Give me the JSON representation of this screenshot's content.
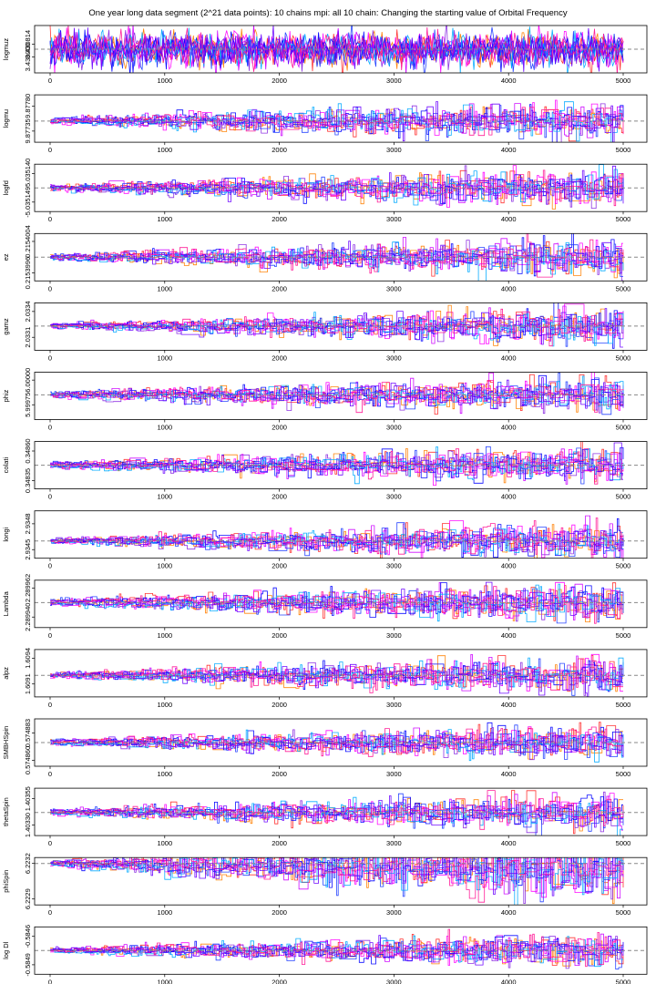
{
  "chart_data": {
    "type": "line",
    "title": "One year long data segment (2^21 data points): 10 chains mpi: all 10 chain: Changing the starting value of Orbital Frequency",
    "x_range": [
      0,
      5000
    ],
    "x_ticks": [
      0,
      1000,
      2000,
      3000,
      4000,
      5000
    ],
    "n_chains": 10,
    "chain_colors": [
      "#ff2a2a",
      "#ff7f00",
      "#ff00ff",
      "#cc00ff",
      "#8a2be2",
      "#0000ff",
      "#1e3cff",
      "#00aaff",
      "#ff1493",
      "#6a00ff"
    ],
    "reference_line_color": "#888888",
    "panels": [
      {
        "ylabel": "logmuz",
        "yticks": [
          "3.430814",
          "3.430000"
        ],
        "ylim": [
          3.429,
          3.432
        ],
        "ref": 3.4305,
        "start": 3.4305,
        "spread0": 0.0009,
        "spread1": 0.0009,
        "noise": 0.5,
        "amp": 0.0
      },
      {
        "ylabel": "logmu",
        "yticks": [
          "9.87780",
          "9.87735"
        ],
        "ylim": [
          9.87715,
          9.878
        ],
        "ref": 9.87753,
        "start": 9.87753,
        "spread0": 3e-05,
        "spread1": 0.00028,
        "noise": 0.35,
        "amp": 4e-05
      },
      {
        "ylabel": "logfd",
        "yticks": [
          "-5.035140",
          "-5.035149"
        ],
        "ylim": [
          -5.035152,
          -5.035137
        ],
        "ref": -5.0351445,
        "start": -5.0351445,
        "spread0": 5e-07,
        "spread1": 5e-06,
        "noise": 0.35,
        "amp": 5e-07
      },
      {
        "ylabel": "ez",
        "yticks": [
          "0.2154004",
          "0.2153996"
        ],
        "ylim": [
          0.2153994,
          0.2154006
        ],
        "ref": 0.2154,
        "start": 0.2154,
        "spread0": 3e-08,
        "spread1": 4e-07,
        "noise": 0.35,
        "amp": 5e-08
      },
      {
        "ylabel": "gamz",
        "yticks": [
          "2.0334",
          "2.0331"
        ],
        "ylim": [
          2.03295,
          2.0335
        ],
        "ref": 2.03323,
        "start": 2.03323,
        "spread0": 1e-05,
        "spread1": 0.00018,
        "noise": 0.35,
        "amp": 2e-05
      },
      {
        "ylabel": "phiz",
        "yticks": [
          "6.00000",
          "5.99975"
        ],
        "ylim": [
          5.9996,
          6.00008
        ],
        "ref": 5.99985,
        "start": 5.99985,
        "spread0": 2e-05,
        "spread1": 0.00015,
        "noise": 0.35,
        "amp": 2e-05
      },
      {
        "ylabel": "colati",
        "yticks": [
          "0.34860",
          "0.34835"
        ],
        "ylim": [
          0.34828,
          0.34868
        ],
        "ref": 0.34848,
        "start": 0.34848,
        "spread0": 1e-05,
        "spread1": 0.00013,
        "noise": 0.35,
        "amp": 2e-05
      },
      {
        "ylabel": "longi",
        "yticks": [
          "2.9348",
          "2.9345"
        ],
        "ylim": [
          2.9344,
          2.93495
        ],
        "ref": 2.9346,
        "start": 2.9346,
        "spread0": 1e-05,
        "spread1": 0.00018,
        "noise": 0.35,
        "amp": 2e-05
      },
      {
        "ylabel": "Lambda",
        "yticks": [
          "2.289962",
          "2.289940"
        ],
        "ylim": [
          2.289932,
          2.289968
        ],
        "ref": 2.289951,
        "start": 2.289951,
        "spread0": 1e-06,
        "spread1": 1.2e-05,
        "noise": 0.35,
        "amp": 2e-06
      },
      {
        "ylabel": "alpz",
        "yticks": [
          "1.6094",
          "1.6091"
        ],
        "ylim": [
          1.60895,
          1.6095
        ],
        "ref": 1.6092,
        "start": 1.6092,
        "spread0": 2e-05,
        "spread1": 0.00018,
        "noise": 0.35,
        "amp": 2e-05
      },
      {
        "ylabel": "SMBHSpin",
        "yticks": [
          "0.574883",
          "0.574860"
        ],
        "ylim": [
          0.574855,
          0.574895
        ],
        "ref": 0.574875,
        "start": 0.574875,
        "spread0": 1e-06,
        "spread1": 1.2e-05,
        "noise": 0.35,
        "amp": 2e-06
      },
      {
        "ylabel": "thetaSpin",
        "yticks": [
          "1.40355",
          "1.40330"
        ],
        "ylim": [
          1.4032,
          1.40365
        ],
        "ref": 1.40342,
        "start": 1.40342,
        "spread0": 1e-05,
        "spread1": 0.00014,
        "noise": 0.35,
        "amp": 2e-05
      },
      {
        "ylabel": "phiSpin",
        "yticks": [
          "6.2232",
          "6.2229"
        ],
        "ylim": [
          6.22285,
          6.22325
        ],
        "ref": 6.2232,
        "start": 6.2232,
        "spread0": 1e-05,
        "spread1": 0.00022,
        "noise": 0.35,
        "amp": 2e-05,
        "drift": -6e-05
      },
      {
        "ylabel": "log Dl",
        "yticks": [
          "-0.5846",
          "-0.5849"
        ],
        "ylim": [
          -0.585,
          -0.5845
        ],
        "ref": -0.58475,
        "start": -0.58475,
        "spread0": 1e-05,
        "spread1": 0.00015,
        "noise": 0.35,
        "amp": 2e-05
      }
    ]
  }
}
